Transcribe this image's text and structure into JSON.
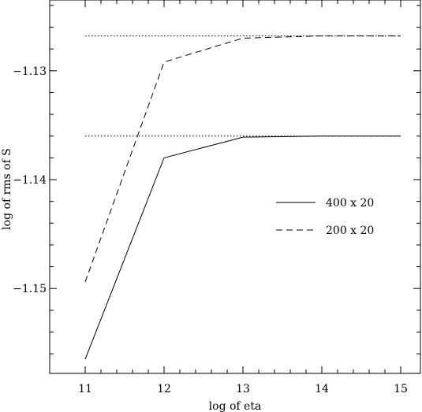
{
  "chart_data": {
    "type": "line",
    "title": "",
    "xlabel": "log of eta",
    "ylabel": "log of rms of S",
    "xlim": [
      10.55,
      15.25
    ],
    "ylim": [
      -1.1578,
      -1.1235
    ],
    "xticks": [
      11,
      12,
      13,
      14,
      15
    ],
    "xtick_labels": [
      "11",
      "12",
      "13",
      "14",
      "15"
    ],
    "yticks": [
      -1.13,
      -1.14,
      -1.15
    ],
    "ytick_labels": [
      "−1.13",
      "−1.14",
      "−1.15"
    ],
    "grid": false,
    "legend_position": "right",
    "series": [
      {
        "name": "400 x 20",
        "style": "solid",
        "x": [
          11,
          12,
          13,
          14,
          15
        ],
        "y": [
          -1.1565,
          -1.138,
          -1.1361,
          -1.136,
          -1.136
        ]
      },
      {
        "name": "200 x 20",
        "style": "dashed",
        "x": [
          11,
          12,
          13,
          14,
          15
        ],
        "y": [
          -1.1494,
          -1.1292,
          -1.127,
          -1.1268,
          -1.1268
        ]
      }
    ],
    "reference_lines": [
      {
        "style": "dotted",
        "y": -1.136,
        "x": [
          11,
          15
        ]
      },
      {
        "style": "dotted",
        "y": -1.1268,
        "x": [
          11,
          15
        ]
      }
    ]
  }
}
